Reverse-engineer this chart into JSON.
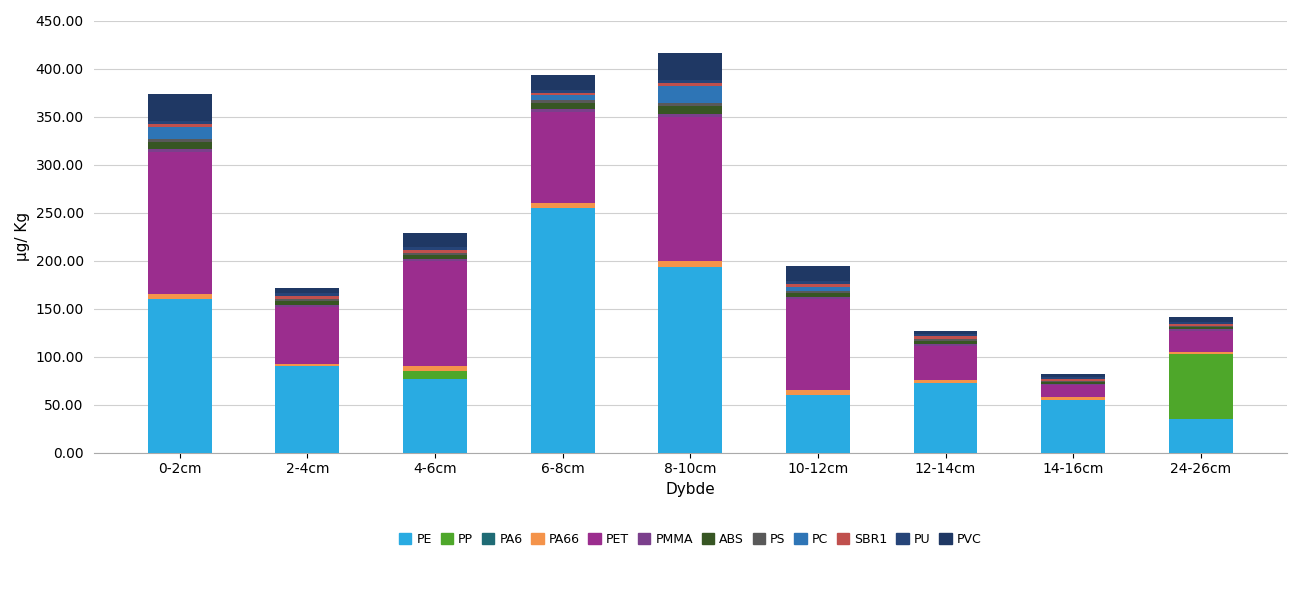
{
  "categories": [
    "0-2cm",
    "2-4cm",
    "4-6cm",
    "6-8cm",
    "8-10cm",
    "10-12cm",
    "12-14cm",
    "14-16cm",
    "24-26cm"
  ],
  "series_names": [
    "PE",
    "PP",
    "PA6",
    "PA66",
    "PET",
    "PMMA",
    "ABS",
    "PS",
    "PC",
    "SBR1",
    "PU",
    "PVC"
  ],
  "values": {
    "PE": [
      160,
      90,
      77,
      255,
      193,
      60,
      73,
      55,
      35
    ],
    "PP": [
      0,
      0,
      8,
      0,
      0,
      0,
      0,
      0,
      68
    ],
    "PA6": [
      0,
      0,
      0,
      0,
      0,
      0,
      0,
      0,
      0
    ],
    "PA66": [
      5,
      2,
      5,
      5,
      7,
      5,
      3,
      3,
      2
    ],
    "PET": [
      148,
      60,
      110,
      95,
      150,
      95,
      35,
      12,
      22
    ],
    "PMMA": [
      3,
      2,
      2,
      3,
      3,
      2,
      2,
      2,
      2
    ],
    "ABS": [
      8,
      4,
      4,
      6,
      8,
      4,
      3,
      2,
      2
    ],
    "PS": [
      3,
      2,
      2,
      3,
      3,
      2,
      2,
      1,
      1
    ],
    "PC": [
      12,
      0,
      0,
      5,
      18,
      5,
      0,
      0,
      0
    ],
    "SBR1": [
      3,
      3,
      3,
      3,
      3,
      3,
      3,
      2,
      2
    ],
    "PU": [
      3,
      3,
      3,
      3,
      3,
      3,
      3,
      2,
      2
    ],
    "PVC": [
      28,
      5,
      15,
      15,
      28,
      15,
      3,
      3,
      5
    ]
  },
  "colors": {
    "PE": "#29ABE2",
    "PP": "#4EA72A",
    "PA6": "#1F6B75",
    "PA66": "#F4934A",
    "PET": "#9B2D8E",
    "PMMA": "#7B3F8C",
    "ABS": "#375623",
    "PS": "#595959",
    "PC": "#2E75B6",
    "SBR1": "#C0504D",
    "PU": "#264478",
    "PVC": "#1F3864"
  },
  "ylabel": "μg/ Kg",
  "xlabel": "Dybde",
  "ylim": [
    0,
    450
  ],
  "yticks": [
    0,
    50,
    100,
    150,
    200,
    250,
    300,
    350,
    400,
    450
  ]
}
